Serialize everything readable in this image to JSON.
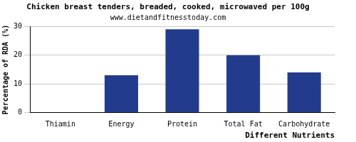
{
  "chart_data": {
    "type": "bar",
    "title": "Chicken breast tenders, breaded, cooked, microwaved per 100g",
    "subtitle": "www.dietandfitnesstoday.com",
    "x_label": "Different Nutrients",
    "y_label": "Percentage of RDA (%)",
    "categories": [
      "Thiamin",
      "Energy",
      "Protein",
      "Total Fat",
      "Carbohydrate"
    ],
    "values": [
      0,
      13,
      29,
      20,
      14
    ],
    "color": "#233b8c",
    "ylim": [
      0,
      30
    ],
    "yticks": [
      0,
      10,
      20,
      30
    ],
    "grid": true
  }
}
